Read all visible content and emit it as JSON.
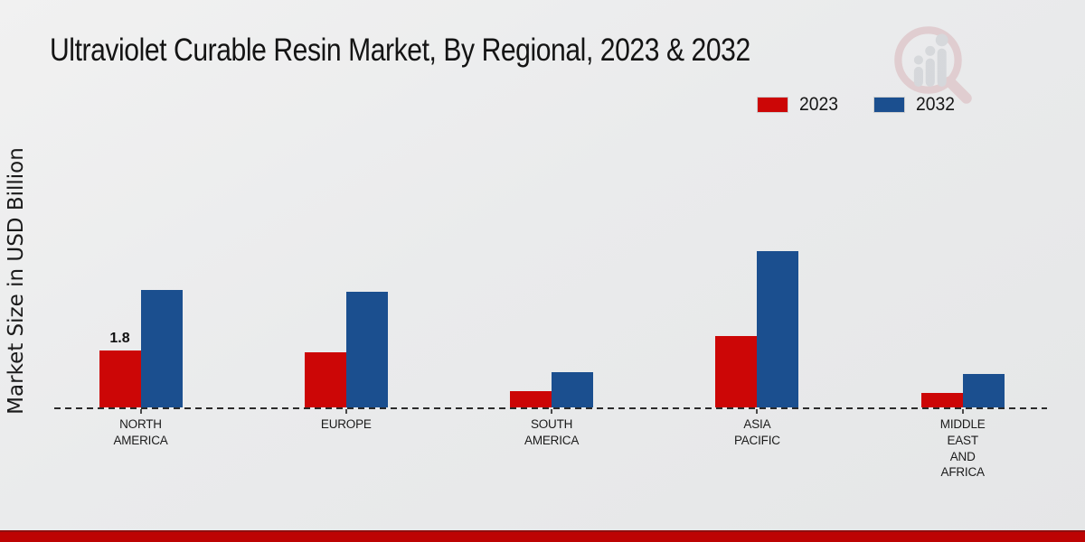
{
  "page": {
    "title": "Ultraviolet Curable Resin Market, By Regional, 2023 & 2032",
    "ylabel": "Market Size in USD Billion"
  },
  "legend": {
    "items": [
      {
        "label": "2023",
        "color": "#cc0606"
      },
      {
        "label": "2032",
        "color": "#1b4f8f"
      }
    ]
  },
  "branding": {
    "logo_icon": "magnifier-bar-chart-logo",
    "logo_colors": {
      "ring": "#d9b6ba",
      "bars": "#c6c9ce"
    }
  },
  "chart_data": {
    "type": "bar",
    "title": "Ultraviolet Curable Resin Market, By Regional, 2023 & 2032",
    "xlabel": "",
    "ylabel": "Market Size in USD Billion",
    "units": "USD Billion",
    "categories": [
      "NORTH AMERICA",
      "EUROPE",
      "SOUTH AMERICA",
      "ASIA PACIFIC",
      "MIDDLE EAST AND AFRICA"
    ],
    "category_label_lines": [
      [
        "NORTH",
        "AMERICA"
      ],
      [
        "EUROPE"
      ],
      [
        "SOUTH",
        "AMERICA"
      ],
      [
        "ASIA",
        "PACIFIC"
      ],
      [
        "MIDDLE",
        "EAST",
        "AND",
        "AFRICA"
      ]
    ],
    "series": [
      {
        "name": "2023",
        "color": "#cc0606",
        "values": [
          1.8,
          1.75,
          0.5,
          2.25,
          0.45
        ]
      },
      {
        "name": "2032",
        "color": "#1b4f8f",
        "values": [
          3.7,
          3.65,
          1.1,
          4.95,
          1.05
        ]
      }
    ],
    "data_labels": [
      {
        "series_index": 0,
        "category_index": 0,
        "text": "1.8"
      }
    ],
    "ylim": [
      0,
      5.5
    ],
    "axis": {
      "baseline_style": "dashed",
      "y_axis_visible": false,
      "gridlines": false
    },
    "legend_position": "top-right"
  },
  "footer": {
    "stripe_color": "#bd0303",
    "stripe_top_edge_color": "#8f0e0e"
  }
}
